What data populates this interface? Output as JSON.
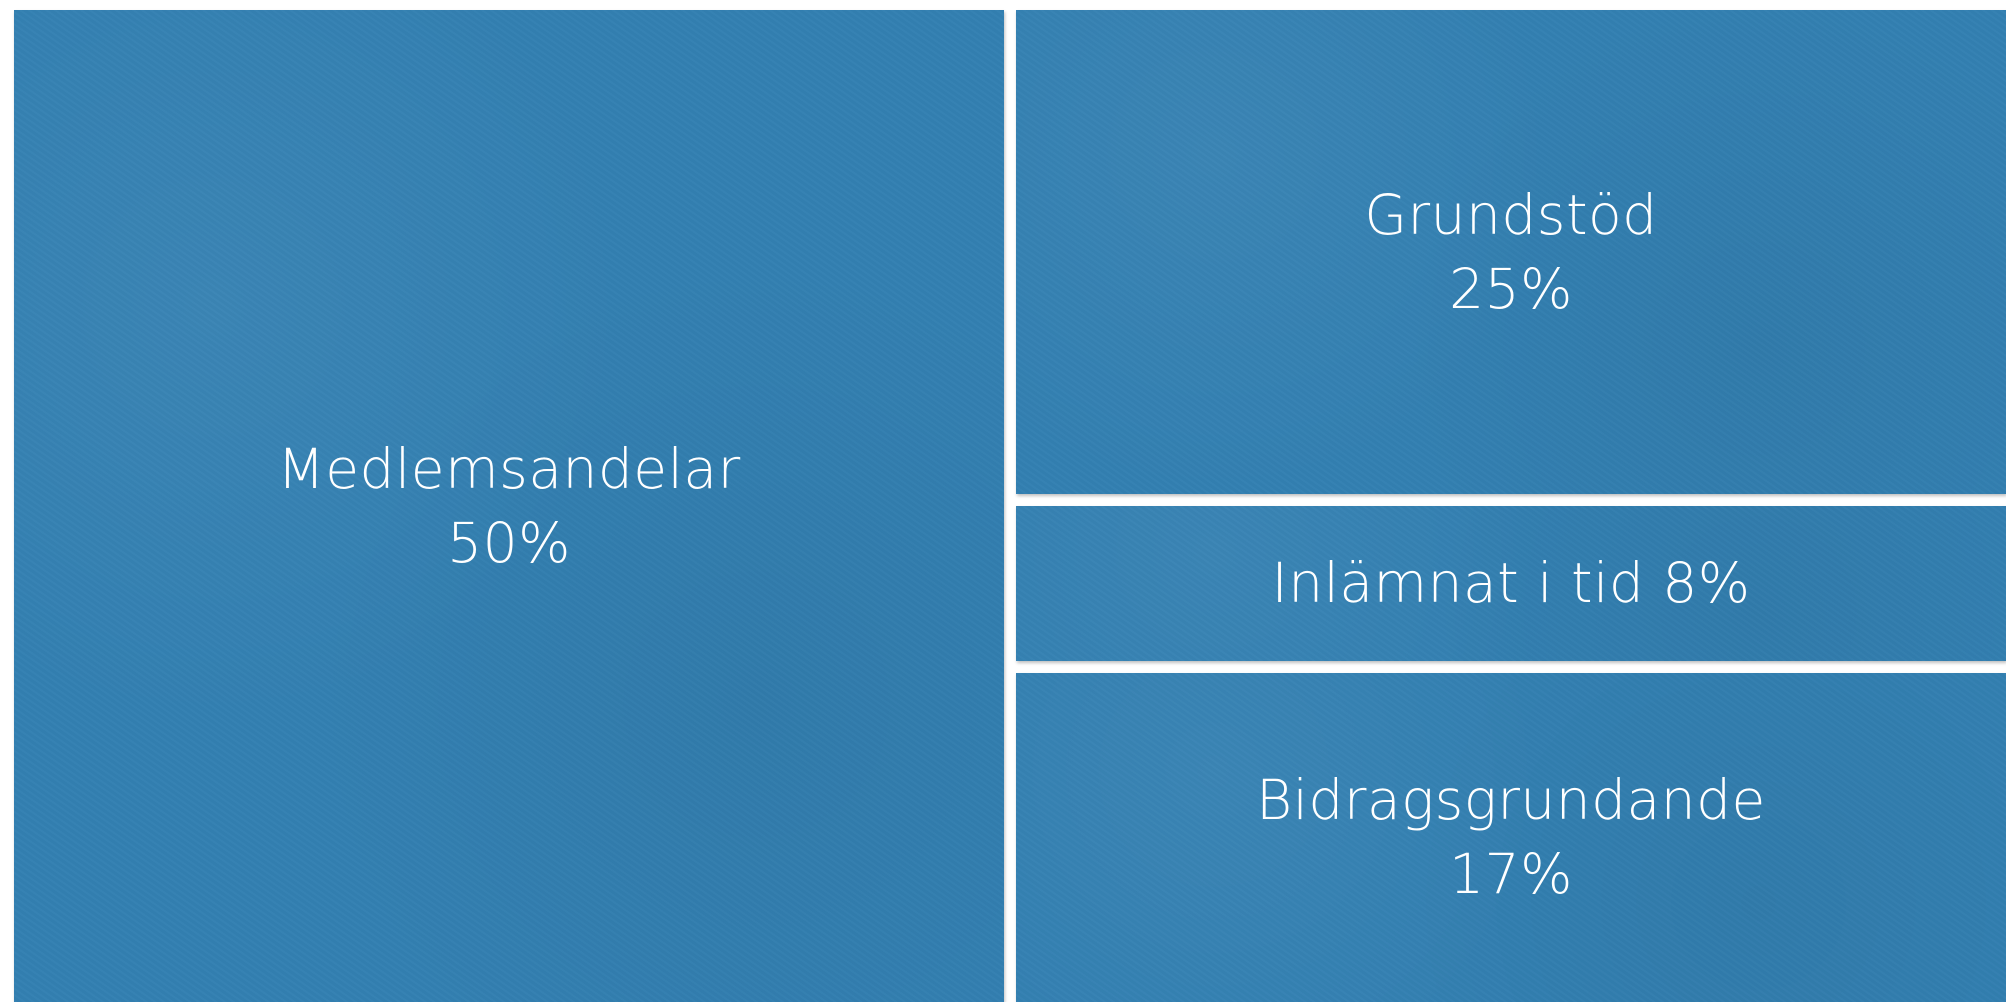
{
  "chart_data": {
    "type": "treemap",
    "title": "",
    "colors": {
      "tile": "#3380b2",
      "text": "#ffffff"
    },
    "items": [
      {
        "label": "Medlemsandelar",
        "value": 50,
        "value_label": "50%"
      },
      {
        "label": "Grundstöd",
        "value": 25,
        "value_label": "25%"
      },
      {
        "label": "Inlämnat i tid",
        "value": 8,
        "value_label": "8%"
      },
      {
        "label": "Bidragsgrundande",
        "value": 17,
        "value_label": "17%"
      }
    ]
  }
}
